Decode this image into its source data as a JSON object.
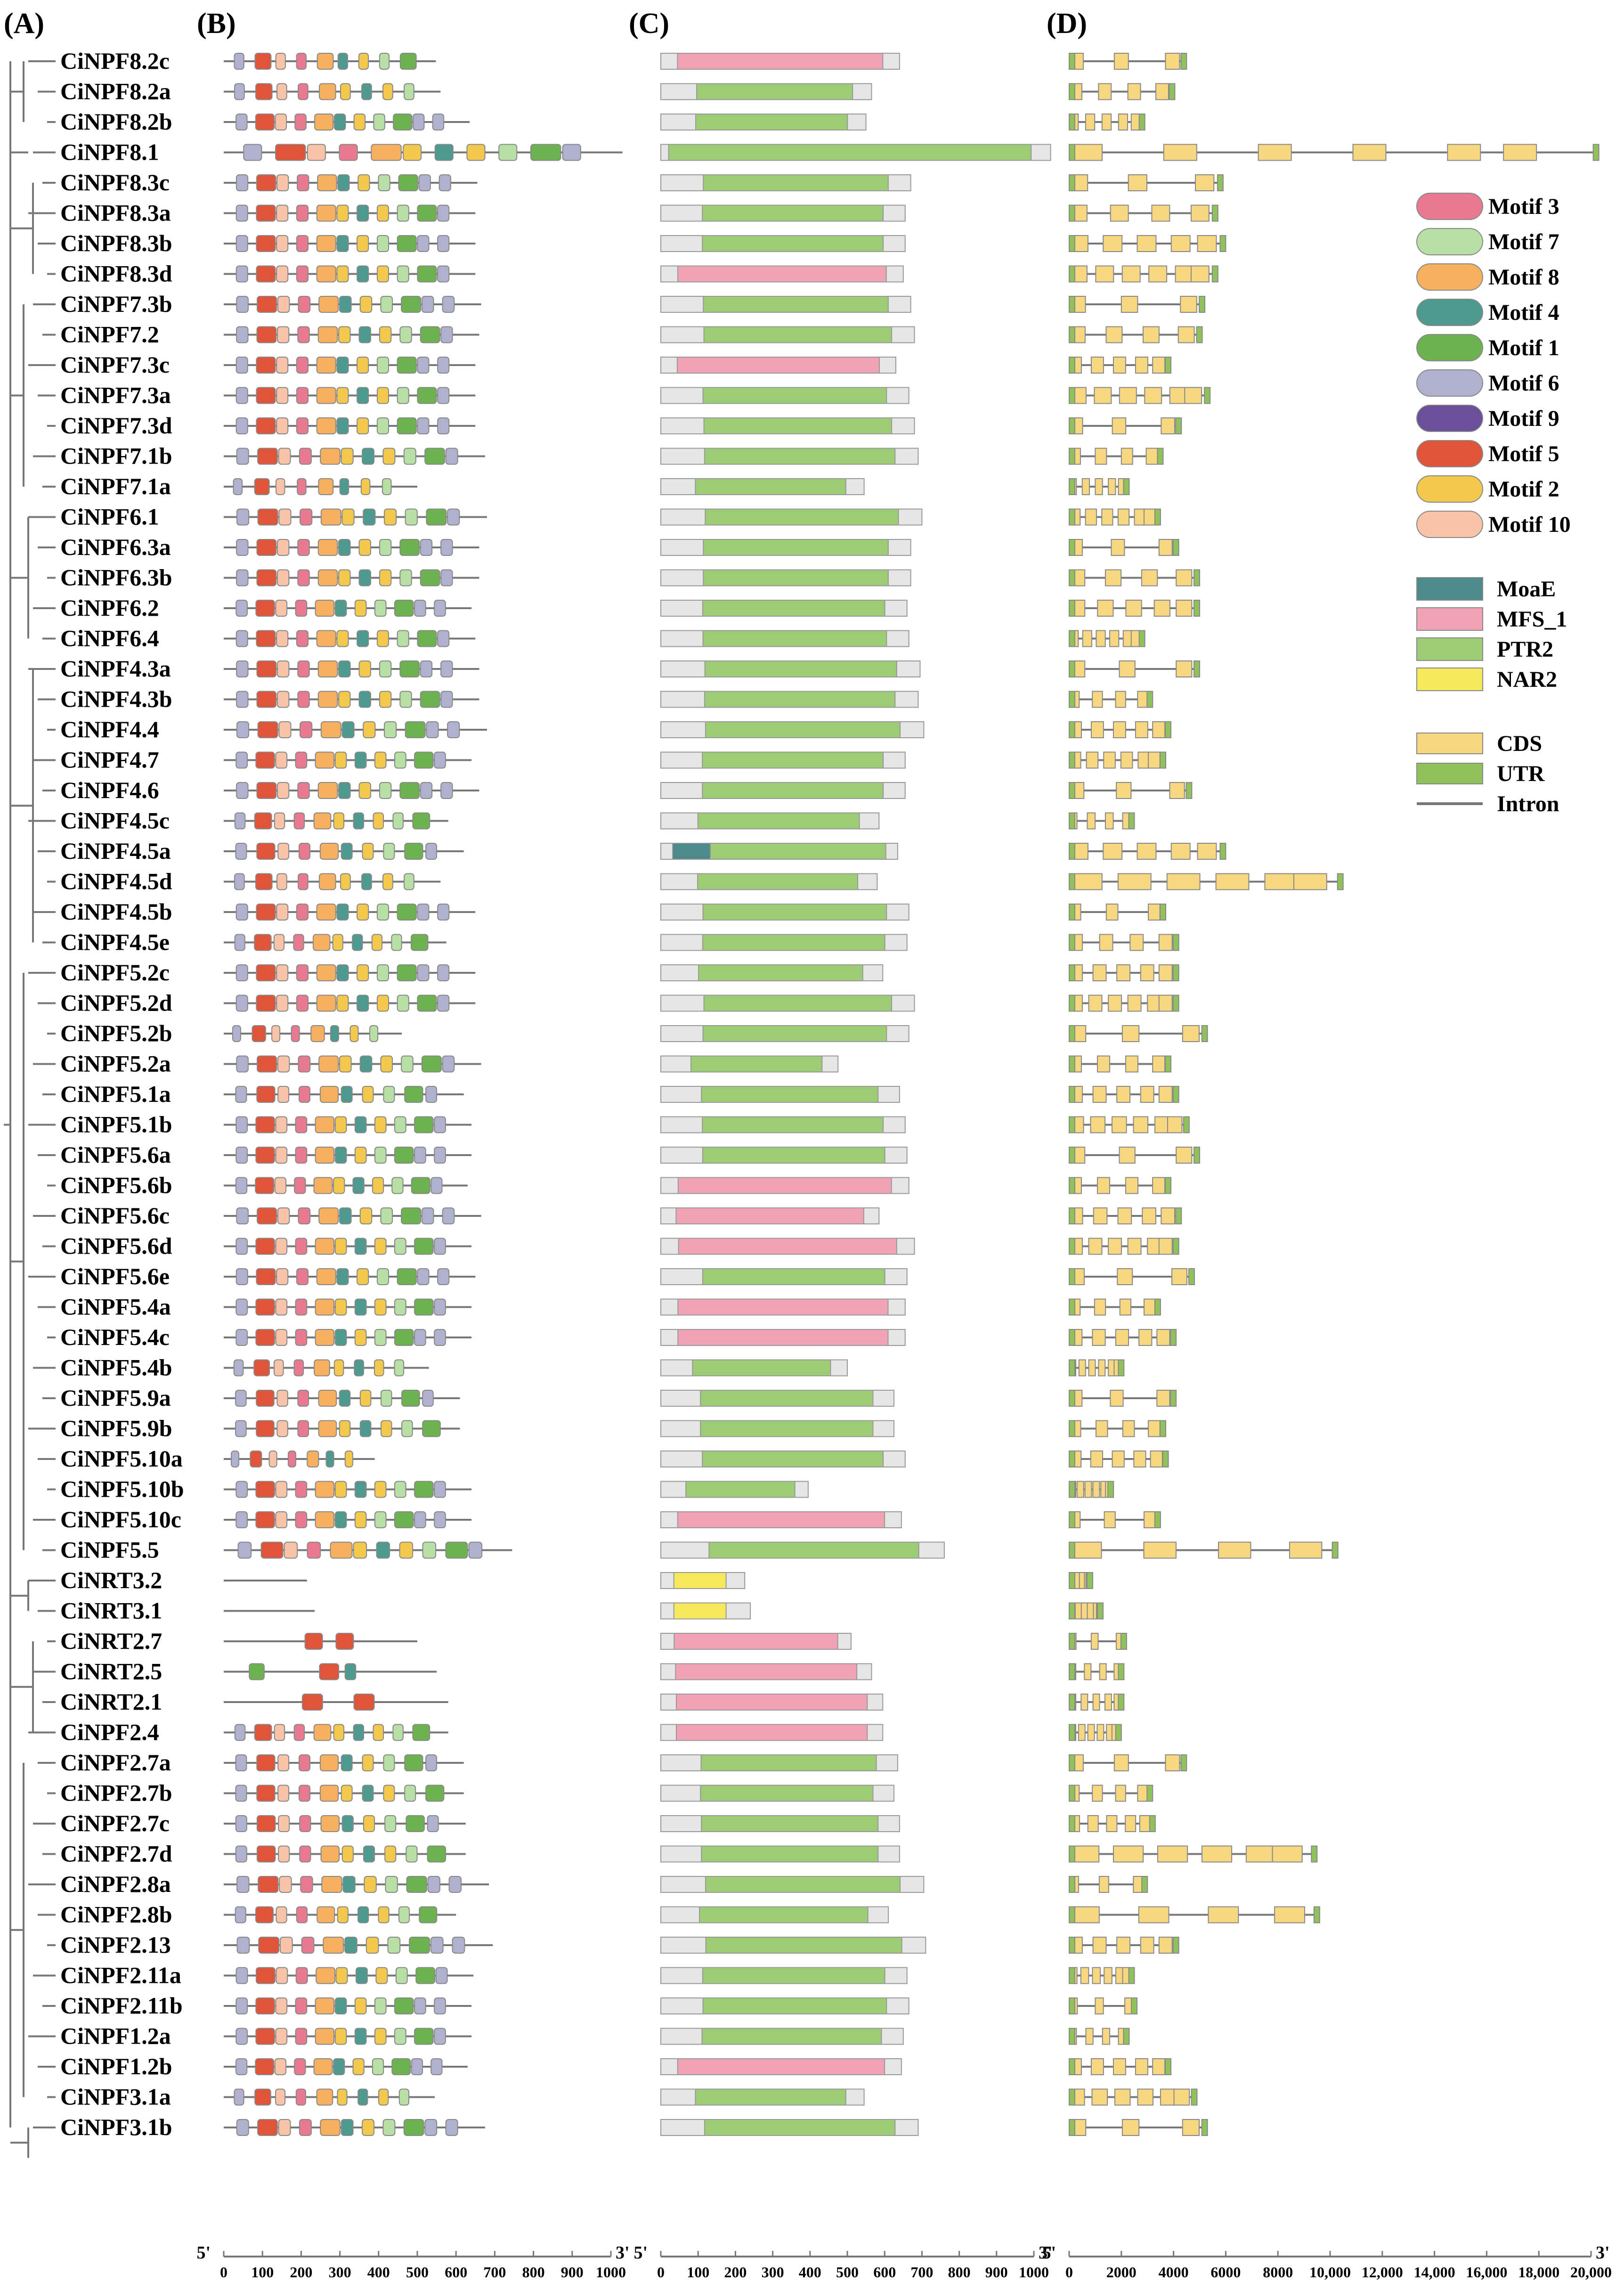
{
  "panels": {
    "A": "(A)",
    "B": "(B)",
    "C": "(C)",
    "D": "(D)"
  },
  "genes": [
    {
      "name": "CiNPF8.2c",
      "B": 548,
      "C": 640,
      "D": 4500
    },
    {
      "name": "CiNPF8.2a",
      "B": 560,
      "C": 565,
      "D": 4050
    },
    {
      "name": "CiNPF8.2b",
      "B": 635,
      "C": 550,
      "D": 2900
    },
    {
      "name": "CiNPF8.1",
      "B": 1030,
      "C": 1045,
      "D": 20300
    },
    {
      "name": "CiNPF8.3c",
      "B": 655,
      "C": 670,
      "D": 5900
    },
    {
      "name": "CiNPF8.3a",
      "B": 650,
      "C": 655,
      "D": 5700
    },
    {
      "name": "CiNPF8.3b",
      "B": 650,
      "C": 655,
      "D": 6000
    },
    {
      "name": "CiNPF8.3d",
      "B": 650,
      "C": 650,
      "D": 5700
    },
    {
      "name": "CiNPF7.3b",
      "B": 665,
      "C": 670,
      "D": 5200
    },
    {
      "name": "CiNPF7.2",
      "B": 660,
      "C": 680,
      "D": 5100
    },
    {
      "name": "CiNPF7.3c",
      "B": 650,
      "C": 630,
      "D": 3900
    },
    {
      "name": "CiNPF7.3a",
      "B": 650,
      "C": 665,
      "D": 5400
    },
    {
      "name": "CiNPF7.3d",
      "B": 650,
      "C": 680,
      "D": 4300
    },
    {
      "name": "CiNPF7.1b",
      "B": 675,
      "C": 690,
      "D": 3600
    },
    {
      "name": "CiNPF7.1a",
      "B": 500,
      "C": 545,
      "D": 2300
    },
    {
      "name": "CiNPF6.1",
      "B": 680,
      "C": 700,
      "D": 3500
    },
    {
      "name": "CiNPF6.3a",
      "B": 660,
      "C": 670,
      "D": 4200
    },
    {
      "name": "CiNPF6.3b",
      "B": 660,
      "C": 670,
      "D": 5000
    },
    {
      "name": "CiNPF6.2",
      "B": 640,
      "C": 660,
      "D": 5000
    },
    {
      "name": "CiNPF6.4",
      "B": 650,
      "C": 665,
      "D": 2900
    },
    {
      "name": "CiNPF4.3a",
      "B": 660,
      "C": 695,
      "D": 5000
    },
    {
      "name": "CiNPF4.3b",
      "B": 660,
      "C": 690,
      "D": 3200
    },
    {
      "name": "CiNPF4.4",
      "B": 680,
      "C": 705,
      "D": 3900
    },
    {
      "name": "CiNPF4.7",
      "B": 640,
      "C": 655,
      "D": 3700
    },
    {
      "name": "CiNPF4.6",
      "B": 660,
      "C": 655,
      "D": 4700
    },
    {
      "name": "CiNPF4.5c",
      "B": 580,
      "C": 585,
      "D": 2500
    },
    {
      "name": "CiNPF4.5a",
      "B": 620,
      "C": 635,
      "D": 6000
    },
    {
      "name": "CiNPF4.5d",
      "B": 560,
      "C": 580,
      "D": 10500
    },
    {
      "name": "CiNPF4.5b",
      "B": 650,
      "C": 665,
      "D": 3700
    },
    {
      "name": "CiNPF4.5e",
      "B": 575,
      "C": 660,
      "D": 4200
    },
    {
      "name": "CiNPF5.2c",
      "B": 650,
      "C": 595,
      "D": 4200
    },
    {
      "name": "CiNPF5.2d",
      "B": 650,
      "C": 680,
      "D": 4200
    },
    {
      "name": "CiNPF5.2b",
      "B": 460,
      "C": 665,
      "D": 5300
    },
    {
      "name": "CiNPF5.2a",
      "B": 665,
      "C": 475,
      "D": 3900
    },
    {
      "name": "CiNPF5.1a",
      "B": 620,
      "C": 640,
      "D": 4200
    },
    {
      "name": "CiNPF5.1b",
      "B": 640,
      "C": 655,
      "D": 4600
    },
    {
      "name": "CiNPF5.6a",
      "B": 640,
      "C": 660,
      "D": 5000
    },
    {
      "name": "CiNPF5.6b",
      "B": 630,
      "C": 665,
      "D": 3900
    },
    {
      "name": "CiNPF5.6c",
      "B": 665,
      "C": 585,
      "D": 4300
    },
    {
      "name": "CiNPF5.6d",
      "B": 640,
      "C": 680,
      "D": 4200
    },
    {
      "name": "CiNPF5.6e",
      "B": 650,
      "C": 660,
      "D": 4800
    },
    {
      "name": "CiNPF5.4a",
      "B": 640,
      "C": 655,
      "D": 3500
    },
    {
      "name": "CiNPF5.4c",
      "B": 640,
      "C": 655,
      "D": 4100
    },
    {
      "name": "CiNPF5.4b",
      "B": 530,
      "C": 500,
      "D": 2100
    },
    {
      "name": "CiNPF5.9a",
      "B": 610,
      "C": 625,
      "D": 4100
    },
    {
      "name": "CiNPF5.9b",
      "B": 610,
      "C": 625,
      "D": 3700
    },
    {
      "name": "CiNPF5.10a",
      "B": 390,
      "C": 655,
      "D": 3800
    },
    {
      "name": "CiNPF5.10b",
      "B": 640,
      "C": 395,
      "D": 1700
    },
    {
      "name": "CiNPF5.10c",
      "B": 640,
      "C": 645,
      "D": 3500
    },
    {
      "name": "CiNPF5.5",
      "B": 745,
      "C": 760,
      "D": 10300
    },
    {
      "name": "CiNRT3.2",
      "B": 215,
      "C": 225,
      "D": 900
    },
    {
      "name": "CiNRT3.1",
      "B": 235,
      "C": 240,
      "D": 1300
    },
    {
      "name": "CiNRT2.7",
      "B": 500,
      "C": 510,
      "D": 2200
    },
    {
      "name": "CiNRT2.5",
      "B": 550,
      "C": 565,
      "D": 2100
    },
    {
      "name": "CiNRT2.1",
      "B": 580,
      "C": 595,
      "D": 2100
    },
    {
      "name": "CiNPF2.4",
      "B": 580,
      "C": 595,
      "D": 2000
    },
    {
      "name": "CiNPF2.7a",
      "B": 620,
      "C": 635,
      "D": 4500
    },
    {
      "name": "CiNPF2.7b",
      "B": 620,
      "C": 625,
      "D": 3200
    },
    {
      "name": "CiNPF2.7c",
      "B": 625,
      "C": 640,
      "D": 3300
    },
    {
      "name": "CiNPF2.7d",
      "B": 625,
      "C": 640,
      "D": 9500
    },
    {
      "name": "CiNPF2.8a",
      "B": 685,
      "C": 705,
      "D": 3000
    },
    {
      "name": "CiNPF2.8b",
      "B": 600,
      "C": 610,
      "D": 9600
    },
    {
      "name": "CiNPF2.13",
      "B": 695,
      "C": 710,
      "D": 4200
    },
    {
      "name": "CiNPF2.11a",
      "B": 645,
      "C": 660,
      "D": 2500
    },
    {
      "name": "CiNPF2.11b",
      "B": 640,
      "C": 665,
      "D": 2600
    },
    {
      "name": "CiNPF1.2a",
      "B": 640,
      "C": 650,
      "D": 2300
    },
    {
      "name": "CiNPF1.2b",
      "B": 630,
      "C": 645,
      "D": 3900
    },
    {
      "name": "CiNPF3.1a",
      "B": 545,
      "C": 545,
      "D": 4900
    },
    {
      "name": "CiNPF3.1b",
      "B": 675,
      "C": 690,
      "D": 5300
    }
  ],
  "legend": {
    "motifs": [
      {
        "label": "Motif 3",
        "color": "#e8798f"
      },
      {
        "label": "Motif 7",
        "color": "#b8e0a4"
      },
      {
        "label": "Motif 8",
        "color": "#f7b15e"
      },
      {
        "label": "Motif 4",
        "color": "#4d9a8e"
      },
      {
        "label": "Motif 1",
        "color": "#6cb34f"
      },
      {
        "label": "Motif 6",
        "color": "#b0b0cf"
      },
      {
        "label": "Motif 9",
        "color": "#6a4f9a"
      },
      {
        "label": "Motif 5",
        "color": "#e0553a"
      },
      {
        "label": "Motif 2",
        "color": "#f2c94c"
      },
      {
        "label": "Motif 10",
        "color": "#f7c4a8"
      }
    ],
    "domains": [
      {
        "label": "MoaE",
        "color": "#4d8a8a"
      },
      {
        "label": "MFS_1",
        "color": "#f2a2b5"
      },
      {
        "label": "PTR2",
        "color": "#9ccc74"
      },
      {
        "label": "NAR2",
        "color": "#f7ea5a"
      }
    ],
    "structure": [
      {
        "label": "CDS",
        "color": "#f7d77f"
      },
      {
        "label": "UTR",
        "color": "#8fc25a"
      },
      {
        "label": "Intron",
        "color": "#777777"
      }
    ]
  },
  "axes": {
    "B": {
      "ticks": [
        0,
        100,
        200,
        300,
        400,
        500,
        600,
        700,
        800,
        900,
        1000
      ],
      "max": 1000,
      "left": "5'",
      "right": "3'"
    },
    "C": {
      "ticks": [
        0,
        100,
        200,
        300,
        400,
        500,
        600,
        700,
        800,
        900,
        1000
      ],
      "max": 1000,
      "left": "5'",
      "right": "3'"
    },
    "D": {
      "ticks": [
        "0",
        "2000",
        "4000",
        "6000",
        "8000",
        "10,000",
        "12,000",
        "14,000",
        "16,000",
        "18,000",
        "20,000"
      ],
      "max": 20000,
      "left": "5'",
      "right": "3'"
    }
  }
}
